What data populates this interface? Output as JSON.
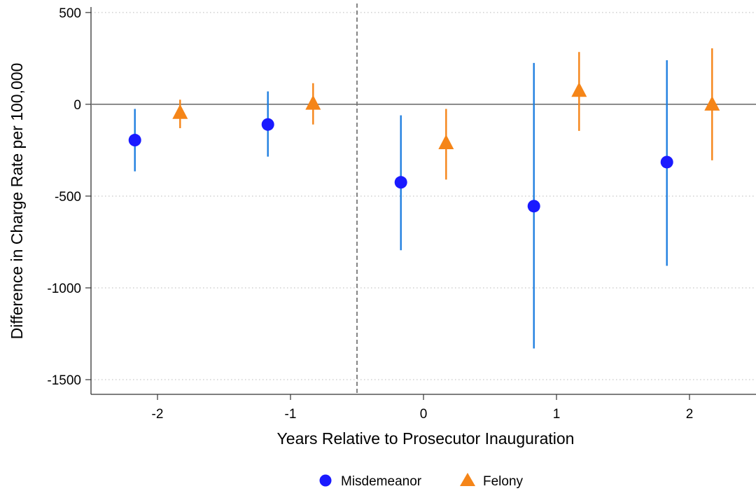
{
  "chart_data": {
    "type": "scatter",
    "title": "",
    "xlabel": "Years Relative to Prosecutor Inauguration",
    "ylabel": "Difference in Charge Rate per 100,000",
    "x_ticks": [
      -2,
      -1,
      0,
      1,
      2
    ],
    "x_tick_labels": [
      "-2",
      "-1",
      "0",
      "1",
      "2"
    ],
    "y_ticks": [
      500,
      0,
      -500,
      -1000,
      -1500
    ],
    "y_tick_labels": [
      "500",
      "0",
      "-500",
      "-1000",
      "-1500"
    ],
    "xlim": [
      -2.5,
      2.5
    ],
    "ylim": [
      -1580,
      530
    ],
    "reference_line_y": 0,
    "event_line_x": -0.5,
    "grid": "horizontal dotted",
    "legend_position": "bottom",
    "series": [
      {
        "name": "Misdemeanor",
        "marker": "circle",
        "color": "#1a1aff",
        "ci_color": "#1f7fe0",
        "offset": -0.17,
        "points": [
          {
            "x": -2,
            "y": -195,
            "lo": -365,
            "hi": -25
          },
          {
            "x": -1,
            "y": -110,
            "lo": -285,
            "hi": 70
          },
          {
            "x": 0,
            "y": -425,
            "lo": -795,
            "hi": -60
          },
          {
            "x": 1,
            "y": -555,
            "lo": -1330,
            "hi": 225
          },
          {
            "x": 2,
            "y": -315,
            "lo": -880,
            "hi": 240
          }
        ]
      },
      {
        "name": "Felony",
        "marker": "triangle",
        "color": "#f58518",
        "ci_color": "#f58518",
        "offset": 0.17,
        "points": [
          {
            "x": -2,
            "y": -45,
            "lo": -130,
            "hi": 25
          },
          {
            "x": -1,
            "y": 5,
            "lo": -110,
            "hi": 115
          },
          {
            "x": 0,
            "y": -210,
            "lo": -410,
            "hi": -25
          },
          {
            "x": 1,
            "y": 75,
            "lo": -145,
            "hi": 285
          },
          {
            "x": 2,
            "y": 0,
            "lo": -305,
            "hi": 305
          }
        ]
      }
    ]
  }
}
